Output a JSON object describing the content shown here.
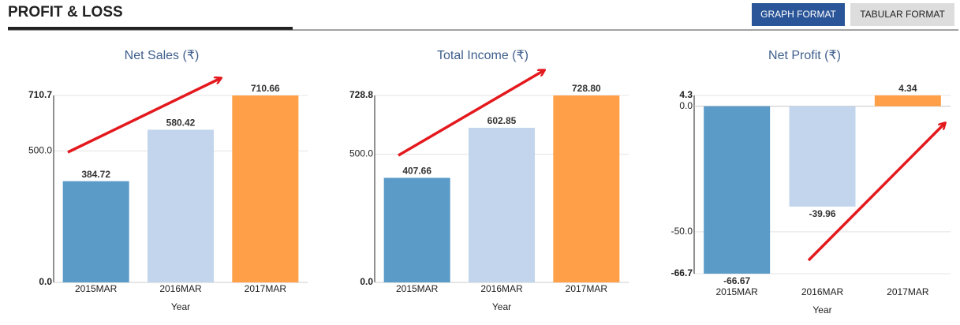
{
  "header": {
    "title": "PROFIT & LOSS",
    "buttons": [
      "GRAPH FORMAT",
      "TABULAR FORMAT"
    ]
  },
  "chart_data": [
    {
      "type": "bar",
      "title": "Net Sales (₹)",
      "x_label": "Year",
      "categories": [
        "2015MAR",
        "2016MAR",
        "2017MAR"
      ],
      "values": [
        384.72,
        580.42,
        710.66
      ],
      "colors": [
        "#5a9bc8",
        "#c2d5ec",
        "#ff9f47"
      ],
      "ylim": [
        0,
        710.7
      ],
      "yticks": [
        {
          "value": 0,
          "label": "0.0"
        },
        {
          "value": 500,
          "label": "500.0"
        },
        {
          "value": 710.7,
          "label": "710.7"
        }
      ],
      "grid": true
    },
    {
      "type": "bar",
      "title": "Total Income (₹)",
      "x_label": "Year",
      "categories": [
        "2015MAR",
        "2016MAR",
        "2017MAR"
      ],
      "values": [
        407.66,
        602.85,
        728.8
      ],
      "value_labels": [
        "407.66",
        "602.85",
        "728.80"
      ],
      "colors": [
        "#5a9bc8",
        "#c2d5ec",
        "#ff9f47"
      ],
      "ylim": [
        0,
        728.8
      ],
      "yticks": [
        {
          "value": 0,
          "label": "0.0"
        },
        {
          "value": 500,
          "label": "500.0"
        },
        {
          "value": 728.8,
          "label": "728.8"
        }
      ],
      "grid": true
    },
    {
      "type": "bar",
      "title": "Net Profit (₹)",
      "x_label": "Year",
      "categories": [
        "2015MAR",
        "2016MAR",
        "2017MAR"
      ],
      "values": [
        -66.67,
        -39.96,
        4.34
      ],
      "colors": [
        "#5a9bc8",
        "#c2d5ec",
        "#ff9f47"
      ],
      "ylim": [
        -66.7,
        4.3
      ],
      "yticks": [
        {
          "value": -66.7,
          "label": "-66.7"
        },
        {
          "value": -50,
          "label": "-50.0"
        },
        {
          "value": 0,
          "label": "0.0"
        },
        {
          "value": 4.3,
          "label": "4.3"
        }
      ],
      "grid": true
    }
  ]
}
